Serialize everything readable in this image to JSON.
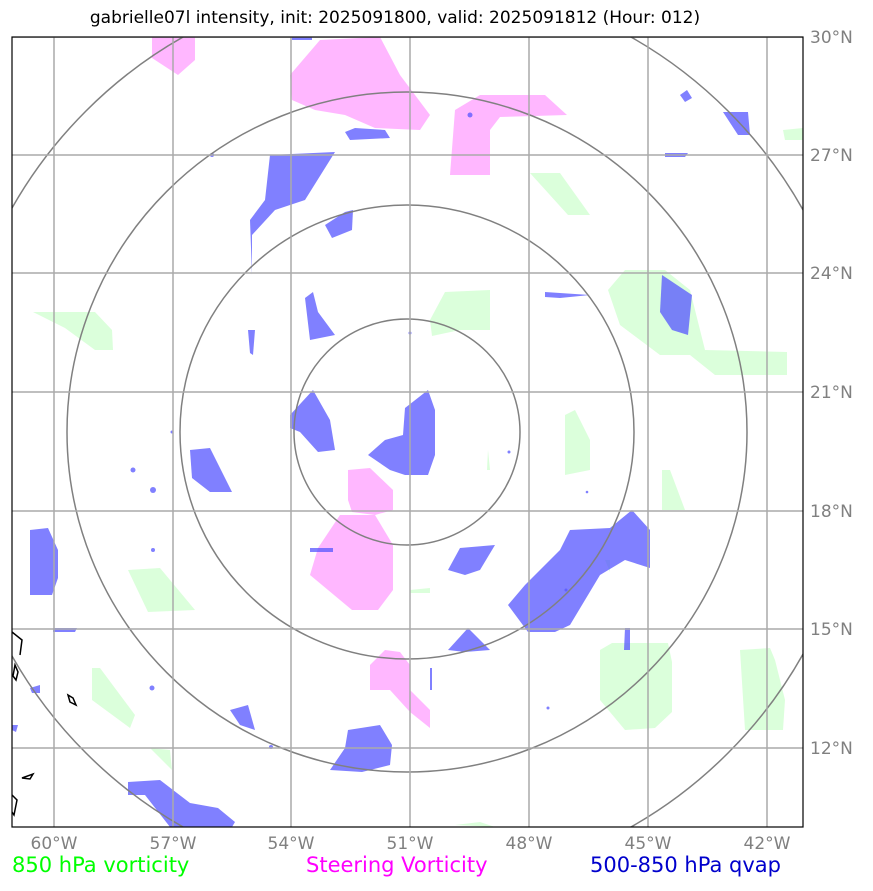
{
  "title": "gabrielle07l intensity, init: 2025091800, valid: 2025091812 (Hour: 012)",
  "lat_labels": [
    "30°N",
    "27°N",
    "24°N",
    "21°N",
    "18°N",
    "15°N",
    "12°N"
  ],
  "lon_labels": [
    "60°W",
    "57°W",
    "54°W",
    "51°W",
    "48°W",
    "45°W",
    "42°W"
  ],
  "legend": {
    "vorticity_850": "850 hPa vorticity",
    "steering_vorticity": "Steering Vorticity",
    "qvap_500_850": "500-850 hPa qvap"
  },
  "colors": {
    "vorticity_850": "#00ff00",
    "steering_vorticity": "#ff00ff",
    "qvap_500_850": "#0000cc",
    "grid": "#808080"
  }
}
